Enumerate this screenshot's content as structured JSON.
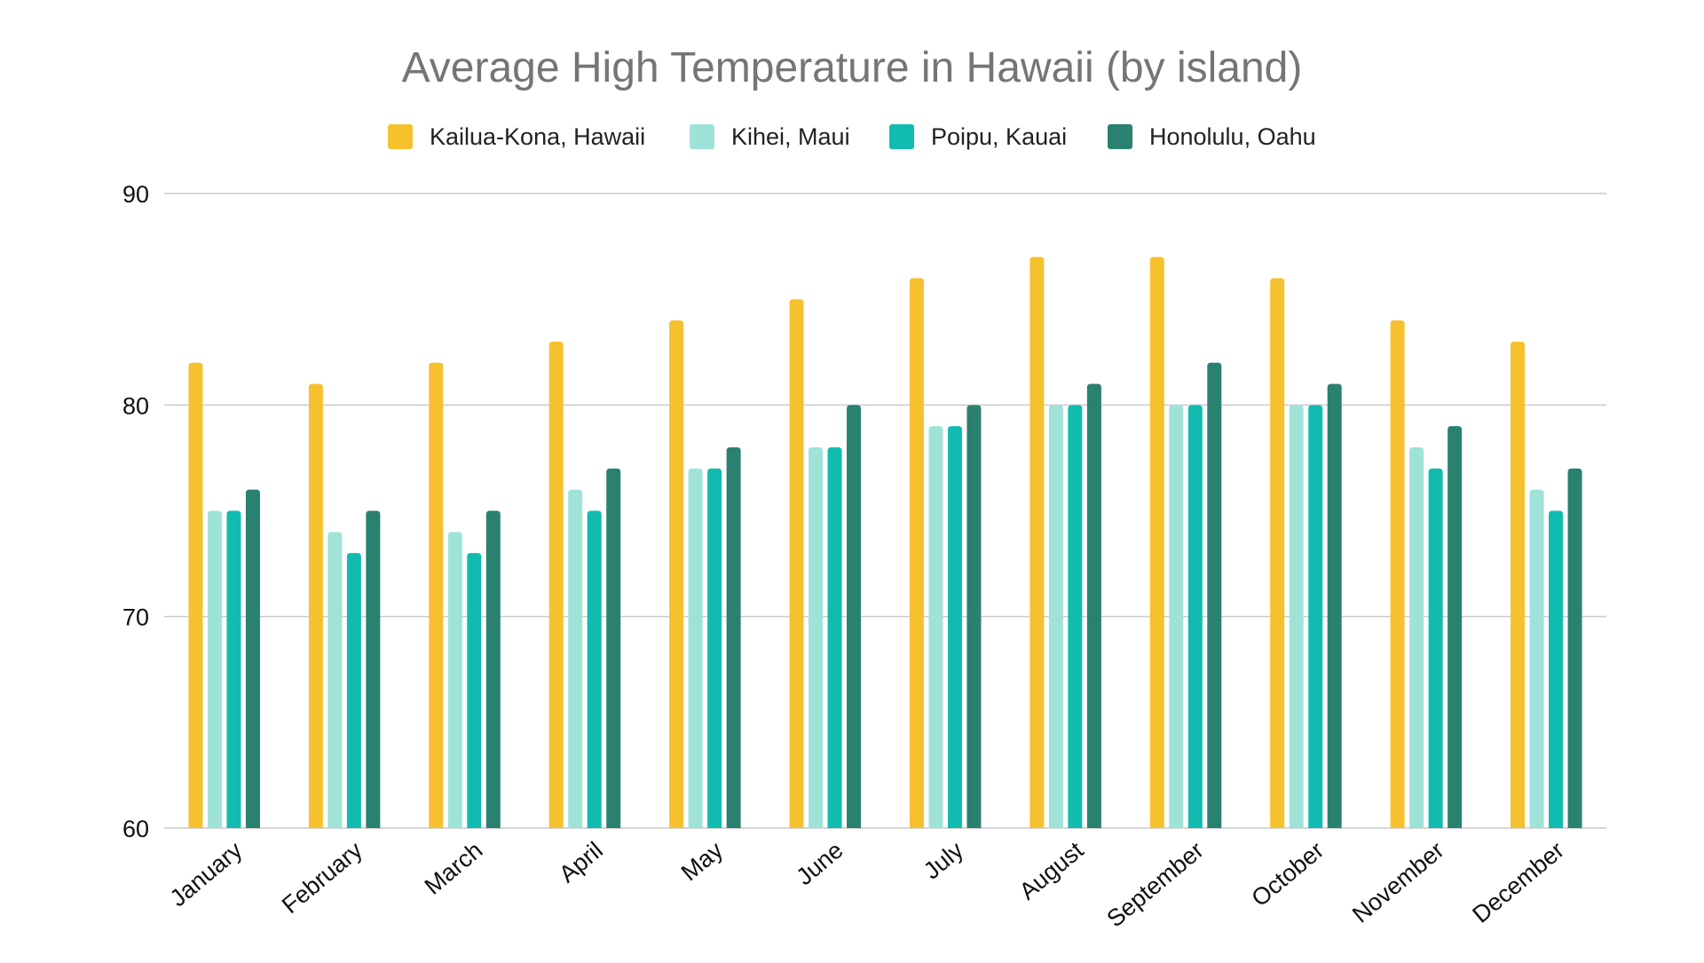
{
  "chart_data": {
    "type": "bar",
    "title": "Average High Temperature in Hawaii (by island)",
    "xlabel": "",
    "ylabel": "",
    "ylim": [
      60,
      90
    ],
    "yticks": [
      60,
      70,
      80,
      90
    ],
    "grid": true,
    "legend_position": "top",
    "categories": [
      "January",
      "February",
      "March",
      "April",
      "May",
      "June",
      "July",
      "August",
      "September",
      "October",
      "November",
      "December"
    ],
    "series": [
      {
        "name": "Kailua-Kona, Hawaii",
        "color": "#F6C12F",
        "values": [
          82,
          81,
          82,
          83,
          84,
          85,
          86,
          87,
          87,
          86,
          84,
          83
        ]
      },
      {
        "name": "Kihei, Maui",
        "color": "#9FE3D8",
        "values": [
          75,
          74,
          74,
          76,
          77,
          78,
          79,
          80,
          80,
          80,
          78,
          76
        ]
      },
      {
        "name": "Poipu, Kauai",
        "color": "#11BBB0",
        "values": [
          75,
          73,
          73,
          75,
          77,
          78,
          79,
          80,
          80,
          80,
          77,
          75
        ]
      },
      {
        "name": "Honolulu, Oahu",
        "color": "#2A816F",
        "values": [
          76,
          75,
          75,
          77,
          78,
          80,
          80,
          81,
          82,
          81,
          79,
          77
        ]
      }
    ]
  }
}
